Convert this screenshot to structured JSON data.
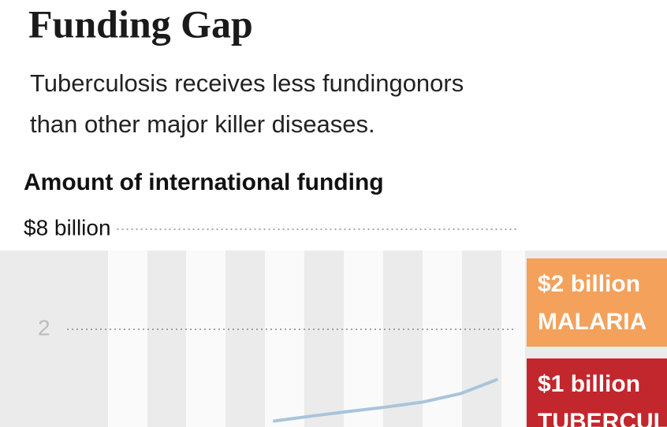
{
  "chart_data": {
    "type": "line",
    "title": "Funding Gap",
    "subtitle": [
      "Tuberculosis receives less fundingonors",
      "than other major killer diseases."
    ],
    "y_label": "Amount of international funding",
    "log_scale": true,
    "ylim": [
      0.5,
      8
    ],
    "yticks": [
      {
        "value": 8,
        "label": "$8 billion"
      },
      2
    ],
    "grid": true,
    "categories": [
      null,
      null,
      null,
      null,
      null,
      null,
      null,
      null,
      null,
      null,
      null,
      null
    ],
    "values": [
      null,
      null,
      null,
      null,
      null,
      0.56,
      0.6,
      0.64,
      0.68,
      0.73,
      0.82,
      1
    ],
    "color": "#a9c4dc",
    "annotations": [
      {
        "value": 2,
        "label": "$2 billion",
        "text": "MALARIA",
        "color": "#f3a15b"
      },
      {
        "value": 1,
        "label": "$1 billion",
        "text": "TUBERCULOSIS",
        "color": "#c1272d"
      }
    ]
  }
}
